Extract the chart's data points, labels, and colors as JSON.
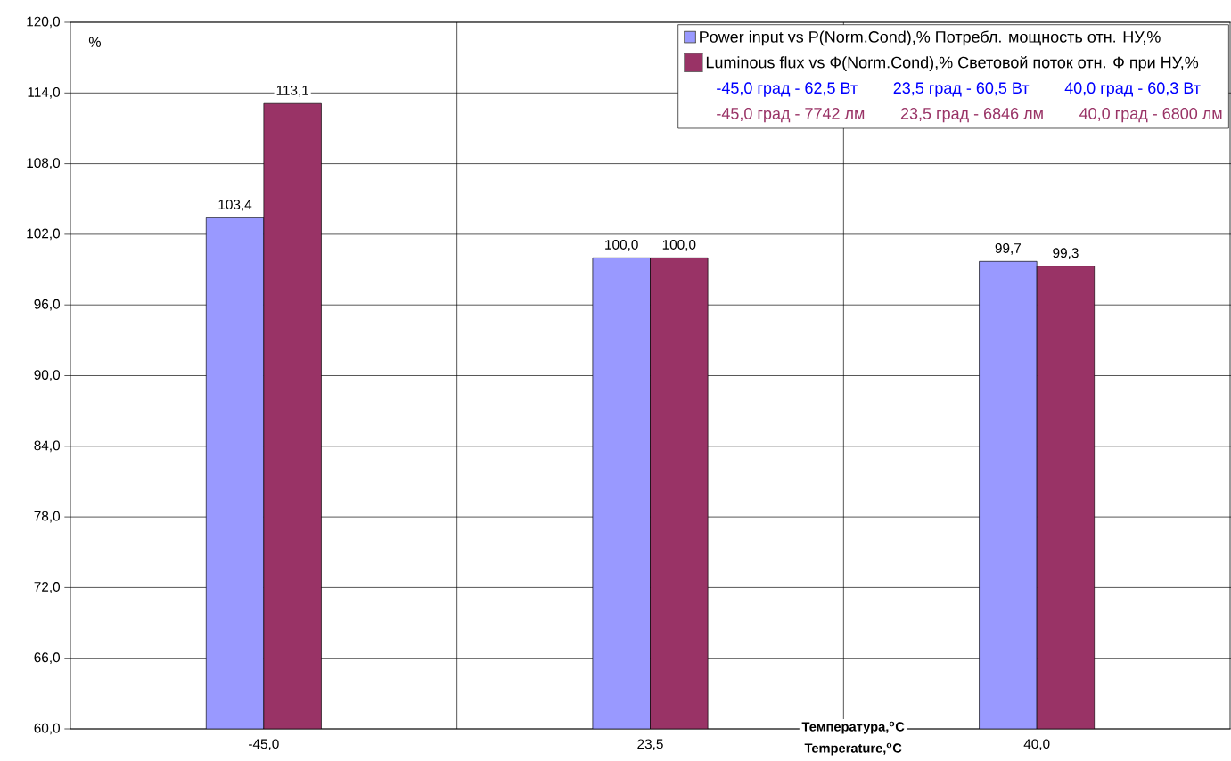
{
  "chart_data": {
    "type": "bar",
    "xlabel": "Температура,$^{o}$C",
    "ylabel": "%",
    "categories": [
      "-45,0",
      "23,5",
      "40,0"
    ],
    "series": [
      {
        "name": "Power input vs P(Norm.Cond),% Потребл. мощность отн. НУ,%",
        "color": "#9999ff",
        "values": [
          103.4,
          100.0,
          99.7
        ],
        "value_labels": [
          "103,4",
          "100,0",
          "99,7"
        ]
      },
      {
        "name": "Luminous flux vs Ф(Norm.Cond),% Световой поток отн. Ф при НУ,%",
        "color": "#993366",
        "values": [
          113.1,
          100.0,
          99.3
        ],
        "value_labels": [
          "113,1",
          "100,0",
          "99,3"
        ]
      }
    ],
    "ylim": [
      60,
      120
    ],
    "yticks": [
      {
        "value": 60,
        "label": "60,0"
      },
      {
        "value": 66,
        "label": "66,0"
      },
      {
        "value": 72,
        "label": "72,0"
      },
      {
        "value": 78,
        "label": "78,0"
      },
      {
        "value": 84,
        "label": "84,0"
      },
      {
        "value": 90,
        "label": "90,0"
      },
      {
        "value": 96,
        "label": "96,0"
      },
      {
        "value": 102,
        "label": "102,0"
      },
      {
        "value": 108,
        "label": "108,0"
      },
      {
        "value": 114,
        "label": "114,0"
      },
      {
        "value": 120,
        "label": "120,0"
      }
    ],
    "grid": true,
    "legend": "top right",
    "annotations": [
      "-45,0 град - 62,5 Вт",
      "23,5 град - 60,5 Вт",
      "40,0 град - 60,3 Вт",
      "-45,0 град - 7742 лм",
      "23,5 град - 6846 лм",
      "40,0 град - 6800 лм",
      "Temperature,$^{o}$C"
    ]
  }
}
